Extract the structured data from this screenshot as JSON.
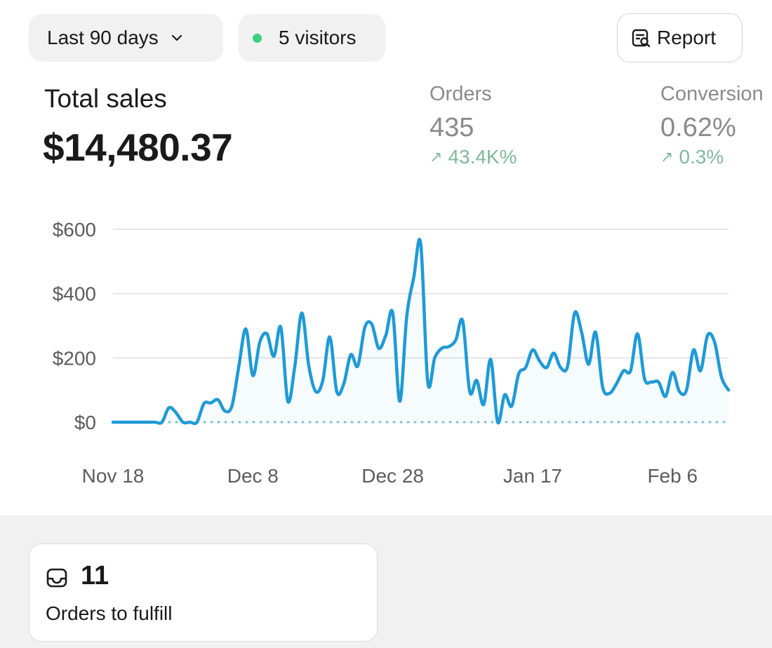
{
  "filters": {
    "date_range": "Last 90 days",
    "visitors": "5 visitors"
  },
  "actions": {
    "report_label": "Report"
  },
  "summary": {
    "total_sales_label": "Total sales",
    "total_sales_value": "$14,480.37",
    "orders": {
      "label": "Orders",
      "value": "435",
      "change": "43.4K%"
    },
    "conversion": {
      "label": "Conversion",
      "value": "0.62%",
      "change": "0.3%"
    }
  },
  "colors": {
    "line": "#1f9ad6",
    "online_dot": "#3ed07b",
    "positive_change": "#7fb99a"
  },
  "icons": {
    "date_range": "chevron-down-icon",
    "report": "report-search-icon",
    "change": "arrow-up-right-icon",
    "orders_card": "inbox-icon"
  },
  "chart_data": {
    "type": "line",
    "title": "",
    "xlabel": "",
    "ylabel": "",
    "ylim": [
      0,
      600
    ],
    "grid": true,
    "y_ticks": [
      "$0",
      "$200",
      "$400",
      "$600"
    ],
    "y_tick_values": [
      0,
      200,
      400,
      600
    ],
    "x_ticks": [
      "Nov 18",
      "Dec 8",
      "Dec 28",
      "Jan 17",
      "Feb 6"
    ],
    "x_tick_days": [
      0,
      20,
      40,
      60,
      80
    ],
    "x_days": [
      0,
      1,
      2,
      3,
      4,
      5,
      6,
      7,
      8,
      9,
      10,
      11,
      12,
      13,
      14,
      15,
      16,
      17,
      18,
      19,
      20,
      21,
      22,
      23,
      24,
      25,
      26,
      27,
      28,
      29,
      30,
      31,
      32,
      33,
      34,
      35,
      36,
      37,
      38,
      39,
      40,
      41,
      42,
      43,
      44,
      45,
      46,
      47,
      48,
      49,
      50,
      51,
      52,
      53,
      54,
      55,
      56,
      57,
      58,
      59,
      60,
      61,
      62,
      63,
      64,
      65,
      66,
      67,
      68,
      69,
      70,
      71,
      72,
      73,
      74,
      75,
      76,
      77,
      78,
      79,
      80,
      81,
      82,
      83,
      84,
      85,
      86,
      87,
      88
    ],
    "series": [
      {
        "values": [
          0,
          0,
          0,
          0,
          0,
          0,
          0,
          0,
          45,
          30,
          0,
          0,
          0,
          58,
          60,
          70,
          35,
          50,
          175,
          290,
          145,
          250,
          275,
          205,
          295,
          65,
          175,
          340,
          175,
          95,
          130,
          265,
          95,
          120,
          210,
          175,
          295,
          305,
          230,
          270,
          340,
          65,
          330,
          450,
          555,
          125,
          200,
          230,
          235,
          255,
          315,
          95,
          130,
          55,
          195,
          0,
          85,
          50,
          150,
          170,
          225,
          190,
          170,
          215,
          170,
          175,
          340,
          280,
          180,
          280,
          110,
          90,
          120,
          160,
          160,
          275,
          135,
          125,
          125,
          80,
          155,
          95,
          100,
          225,
          160,
          270,
          250,
          140,
          100
        ]
      }
    ]
  },
  "fulfill_card": {
    "value": "11",
    "label": "Orders to fulfill"
  }
}
